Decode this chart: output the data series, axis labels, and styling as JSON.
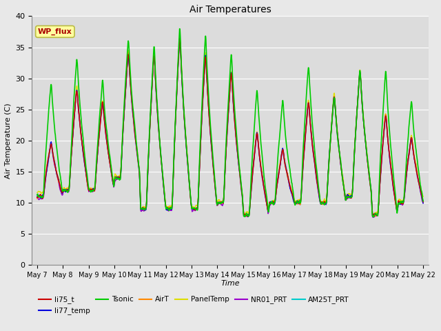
{
  "title": "Air Temperatures",
  "xlabel": "Time",
  "ylabel": "Air Temperature (C)",
  "ylim": [
    0,
    40
  ],
  "background_color": "#dcdcdc",
  "fig_color": "#e8e8e8",
  "series": {
    "li75_t": {
      "color": "#cc0000",
      "lw": 1.0
    },
    "li77_temp": {
      "color": "#0000dd",
      "lw": 1.0
    },
    "Tsonic": {
      "color": "#00cc00",
      "lw": 1.2
    },
    "AirT": {
      "color": "#ff8800",
      "lw": 1.0
    },
    "PanelTemp": {
      "color": "#dddd00",
      "lw": 1.0
    },
    "NR01_PRT": {
      "color": "#9900cc",
      "lw": 1.0
    },
    "AM25T_PRT": {
      "color": "#00cccc",
      "lw": 1.0
    }
  },
  "annotation_text": "WP_flux",
  "annotation_color": "#aa0000",
  "annotation_bg": "#ffffa0",
  "annotation_border": "#bbbb44",
  "tick_labels": [
    "May 7",
    "May 8",
    "May 9",
    "May 10",
    "May 11",
    "May 12",
    "May 13",
    "May 14",
    "May 15",
    "May 16",
    "May 17",
    "May 18",
    "May 19",
    "May 20",
    "May 21",
    "May 22"
  ],
  "yticks": [
    0,
    5,
    10,
    15,
    20,
    25,
    30,
    35,
    40
  ],
  "daily_max": [
    20,
    29,
    27,
    35,
    35,
    38,
    35,
    32,
    22,
    19,
    27,
    28,
    32,
    25,
    21,
    26
  ],
  "daily_min": [
    11,
    12,
    12,
    14,
    9,
    9,
    9,
    10,
    8,
    10,
    10,
    10,
    11,
    8,
    10,
    10
  ],
  "tsonic_extra_max": [
    10,
    5,
    3,
    2,
    1,
    1,
    3,
    3,
    7,
    8,
    6,
    0,
    0,
    7,
    6,
    6
  ],
  "num_days": 15,
  "points_per_day": 144
}
